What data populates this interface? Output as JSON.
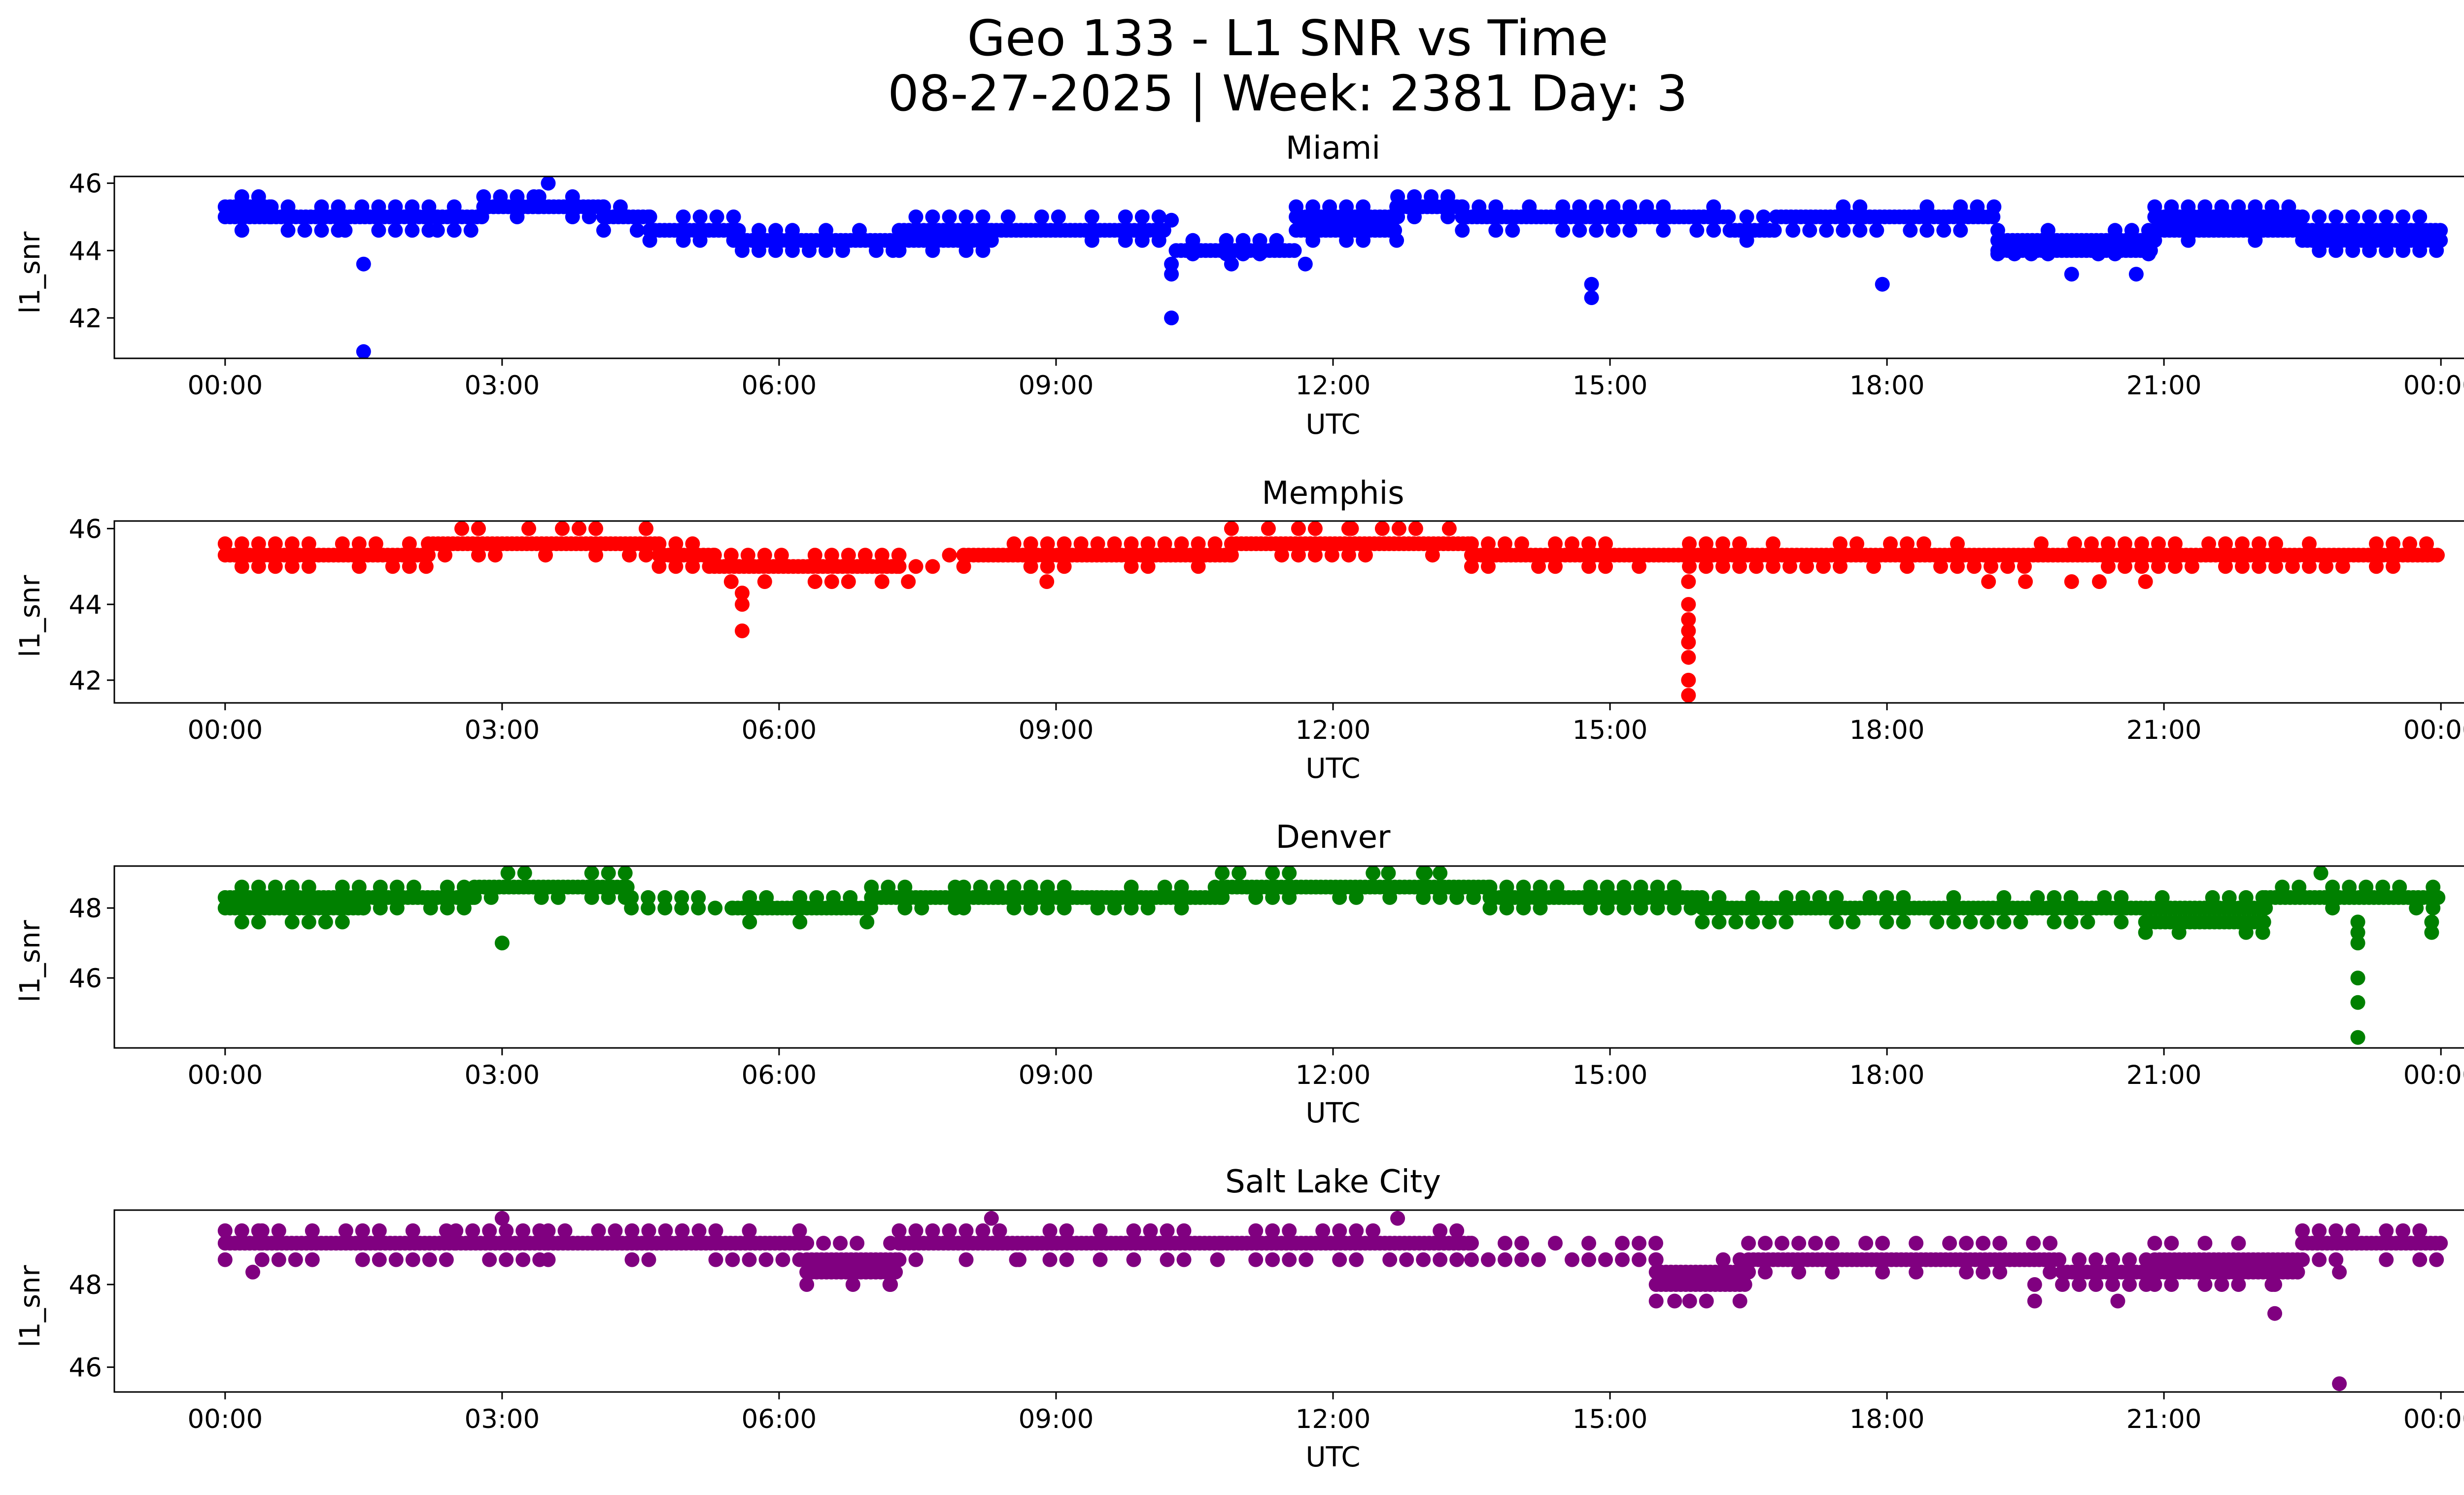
{
  "figure": {
    "title_line1": "Geo 133 - L1 SNR vs Time",
    "title_line2": "08-27-2025 | Week: 2381 Day: 3"
  },
  "chart_data": [
    {
      "type": "scatter",
      "title": "Miami",
      "xlabel": "UTC",
      "ylabel": "l1_snr",
      "color": "#0000ff",
      "xlim_hours": [
        -1.2,
        25.2
      ],
      "ylim": [
        40.8,
        46.2
      ],
      "xticks": [
        {
          "h": 0,
          "label": "00:00"
        },
        {
          "h": 3,
          "label": "03:00"
        },
        {
          "h": 6,
          "label": "06:00"
        },
        {
          "h": 9,
          "label": "09:00"
        },
        {
          "h": 12,
          "label": "12:00"
        },
        {
          "h": 15,
          "label": "15:00"
        },
        {
          "h": 18,
          "label": "18:00"
        },
        {
          "h": 21,
          "label": "21:00"
        },
        {
          "h": 24,
          "label": "00:00"
        }
      ],
      "yticks": [
        {
          "v": 42,
          "label": "42"
        },
        {
          "v": 44,
          "label": "44"
        },
        {
          "v": 46,
          "label": "46"
        }
      ],
      "segments": [
        {
          "x0": 0.0,
          "x1": 0.5,
          "values": [
            44.6,
            45.0,
            45.3,
            45.6
          ]
        },
        {
          "x0": 0.5,
          "x1": 1.3,
          "values": [
            44.6,
            45.0,
            45.3
          ]
        },
        {
          "x0": 1.3,
          "x1": 2.3,
          "values": [
            44.6,
            45.0,
            45.3
          ]
        },
        {
          "x0": 2.3,
          "x1": 2.8,
          "values": [
            44.6,
            45.0,
            45.3
          ]
        },
        {
          "x0": 2.8,
          "x1": 3.4,
          "values": [
            45.0,
            45.3,
            45.6
          ]
        },
        {
          "x0": 3.4,
          "x1": 4.1,
          "values": [
            45.0,
            45.3,
            45.6
          ]
        },
        {
          "x0": 4.1,
          "x1": 4.6,
          "values": [
            44.6,
            45.0,
            45.3
          ]
        },
        {
          "x0": 4.6,
          "x1": 5.6,
          "values": [
            44.3,
            44.6,
            45.0
          ]
        },
        {
          "x0": 5.6,
          "x1": 7.3,
          "values": [
            44.0,
            44.3,
            44.6
          ]
        },
        {
          "x0": 7.3,
          "x1": 8.3,
          "values": [
            44.0,
            44.3,
            44.6,
            45.0
          ]
        },
        {
          "x0": 8.3,
          "x1": 10.2,
          "values": [
            44.3,
            44.6,
            45.0
          ]
        },
        {
          "x0": 10.3,
          "x1": 11.6,
          "values": [
            43.9,
            44.0,
            44.3
          ]
        },
        {
          "x0": 11.6,
          "x1": 12.7,
          "values": [
            44.3,
            44.6,
            45.0,
            45.3
          ]
        },
        {
          "x0": 12.7,
          "x1": 13.4,
          "values": [
            45.0,
            45.3,
            45.6
          ]
        },
        {
          "x0": 13.4,
          "x1": 16.3,
          "values": [
            44.6,
            45.0,
            45.3
          ]
        },
        {
          "x0": 16.3,
          "x1": 16.8,
          "values": [
            44.3,
            44.6,
            45.0
          ]
        },
        {
          "x0": 16.8,
          "x1": 19.2,
          "values": [
            44.6,
            45.0,
            45.3
          ]
        },
        {
          "x0": 19.2,
          "x1": 20.9,
          "values": [
            43.9,
            44.0,
            44.3,
            44.6
          ]
        },
        {
          "x0": 20.9,
          "x1": 22.5,
          "values": [
            44.3,
            44.6,
            45.0,
            45.3
          ]
        },
        {
          "x0": 22.5,
          "x1": 24.0,
          "values": [
            44.0,
            44.3,
            44.6,
            45.0
          ]
        }
      ],
      "outliers": [
        [
          1.5,
          43.6
        ],
        [
          1.5,
          41.0
        ],
        [
          10.25,
          44.9
        ],
        [
          10.25,
          43.6
        ],
        [
          10.25,
          43.3
        ],
        [
          10.25,
          42.0
        ],
        [
          10.9,
          43.6
        ],
        [
          14.8,
          43.0
        ],
        [
          14.8,
          42.6
        ],
        [
          17.95,
          43.0
        ],
        [
          20.0,
          43.3
        ],
        [
          20.7,
          43.3
        ],
        [
          11.7,
          43.6
        ],
        [
          3.5,
          46.0
        ]
      ]
    },
    {
      "type": "scatter",
      "title": "Memphis",
      "xlabel": "UTC",
      "ylabel": "l1_snr",
      "color": "#ff0000",
      "xlim_hours": [
        -1.2,
        25.2
      ],
      "ylim": [
        41.4,
        46.2
      ],
      "xticks": [
        {
          "h": 0,
          "label": "00:00"
        },
        {
          "h": 3,
          "label": "03:00"
        },
        {
          "h": 6,
          "label": "06:00"
        },
        {
          "h": 9,
          "label": "09:00"
        },
        {
          "h": 12,
          "label": "12:00"
        },
        {
          "h": 15,
          "label": "15:00"
        },
        {
          "h": 18,
          "label": "18:00"
        },
        {
          "h": 21,
          "label": "21:00"
        },
        {
          "h": 24,
          "label": "00:00"
        }
      ],
      "yticks": [
        {
          "v": 42,
          "label": "42"
        },
        {
          "v": 44,
          "label": "44"
        },
        {
          "v": 46,
          "label": "46"
        }
      ],
      "segments": [
        {
          "x0": 0.0,
          "x1": 2.2,
          "values": [
            45.0,
            45.3,
            45.6
          ]
        },
        {
          "x0": 2.2,
          "x1": 4.7,
          "values": [
            45.3,
            45.6,
            46.0
          ]
        },
        {
          "x0": 4.7,
          "x1": 5.3,
          "values": [
            45.0,
            45.3,
            45.6
          ]
        },
        {
          "x0": 5.3,
          "x1": 7.3,
          "values": [
            44.6,
            45.0,
            45.3
          ]
        },
        {
          "x0": 7.3,
          "x1": 8.0,
          "values": [
            45.0,
            45.3
          ]
        },
        {
          "x0": 8.0,
          "x1": 10.9,
          "values": [
            45.0,
            45.3,
            45.6
          ]
        },
        {
          "x0": 10.9,
          "x1": 13.5,
          "values": [
            45.3,
            45.6,
            46.0
          ]
        },
        {
          "x0": 13.5,
          "x1": 24.0,
          "values": [
            45.0,
            45.3,
            45.6
          ]
        }
      ],
      "outliers": [
        [
          5.6,
          44.3
        ],
        [
          5.6,
          44.0
        ],
        [
          5.6,
          43.3
        ],
        [
          15.85,
          44.6
        ],
        [
          15.85,
          44.0
        ],
        [
          15.85,
          43.6
        ],
        [
          15.85,
          43.3
        ],
        [
          15.85,
          43.0
        ],
        [
          15.85,
          42.6
        ],
        [
          15.85,
          42.0
        ],
        [
          15.85,
          41.6
        ],
        [
          19.1,
          44.6
        ],
        [
          19.5,
          44.6
        ],
        [
          20.0,
          44.6
        ],
        [
          20.3,
          44.6
        ],
        [
          20.8,
          44.6
        ],
        [
          8.9,
          44.6
        ],
        [
          7.4,
          44.6
        ],
        [
          11.3,
          46.0
        ],
        [
          12.2,
          46.0
        ]
      ]
    },
    {
      "type": "scatter",
      "title": "Denver",
      "xlabel": "UTC",
      "ylabel": "l1_snr",
      "color": "#008000",
      "xlim_hours": [
        -1.2,
        25.2
      ],
      "ylim": [
        44.0,
        49.2
      ],
      "xticks": [
        {
          "h": 0,
          "label": "00:00"
        },
        {
          "h": 3,
          "label": "03:00"
        },
        {
          "h": 6,
          "label": "06:00"
        },
        {
          "h": 9,
          "label": "09:00"
        },
        {
          "h": 12,
          "label": "12:00"
        },
        {
          "h": 15,
          "label": "15:00"
        },
        {
          "h": 18,
          "label": "18:00"
        },
        {
          "h": 21,
          "label": "21:00"
        },
        {
          "h": 24,
          "label": "00:00"
        }
      ],
      "yticks": [
        {
          "v": 46,
          "label": "46"
        },
        {
          "v": 48,
          "label": "48"
        }
      ],
      "segments": [
        {
          "x0": 0.0,
          "x1": 1.5,
          "values": [
            47.6,
            48.0,
            48.3,
            48.6
          ]
        },
        {
          "x0": 1.5,
          "x1": 2.7,
          "values": [
            48.0,
            48.3,
            48.6
          ]
        },
        {
          "x0": 2.7,
          "x1": 4.4,
          "values": [
            48.3,
            48.6,
            49.0
          ]
        },
        {
          "x0": 4.4,
          "x1": 5.5,
          "values": [
            48.0,
            48.3
          ]
        },
        {
          "x0": 5.5,
          "x1": 7.0,
          "values": [
            47.6,
            48.0,
            48.3
          ]
        },
        {
          "x0": 7.0,
          "x1": 8.0,
          "values": [
            48.0,
            48.3,
            48.6
          ]
        },
        {
          "x0": 8.0,
          "x1": 10.8,
          "values": [
            48.0,
            48.3,
            48.6
          ]
        },
        {
          "x0": 10.8,
          "x1": 13.7,
          "values": [
            48.3,
            48.6,
            49.0
          ]
        },
        {
          "x0": 13.7,
          "x1": 16.0,
          "values": [
            48.0,
            48.3,
            48.6
          ]
        },
        {
          "x0": 16.0,
          "x1": 20.8,
          "values": [
            47.6,
            48.0,
            48.3
          ]
        },
        {
          "x0": 20.8,
          "x1": 22.1,
          "values": [
            47.3,
            47.6,
            48.0,
            48.3
          ]
        },
        {
          "x0": 22.1,
          "x1": 24.0,
          "values": [
            48.0,
            48.3,
            48.6
          ]
        }
      ],
      "outliers": [
        [
          3.0,
          47.0
        ],
        [
          23.1,
          47.6
        ],
        [
          23.1,
          47.3
        ],
        [
          23.1,
          47.0
        ],
        [
          23.1,
          46.0
        ],
        [
          23.1,
          45.3
        ],
        [
          23.1,
          44.3
        ],
        [
          23.9,
          47.6
        ],
        [
          23.9,
          47.3
        ],
        [
          22.7,
          49.0
        ],
        [
          12.6,
          49.0
        ],
        [
          13.0,
          49.0
        ]
      ]
    },
    {
      "type": "scatter",
      "title": "Salt Lake City",
      "xlabel": "UTC",
      "ylabel": "l1_snr",
      "color": "#800080",
      "xlim_hours": [
        -1.2,
        25.2
      ],
      "ylim": [
        45.4,
        49.8
      ],
      "xticks": [
        {
          "h": 0,
          "label": "00:00"
        },
        {
          "h": 3,
          "label": "03:00"
        },
        {
          "h": 6,
          "label": "06:00"
        },
        {
          "h": 9,
          "label": "09:00"
        },
        {
          "h": 12,
          "label": "12:00"
        },
        {
          "h": 15,
          "label": "15:00"
        },
        {
          "h": 18,
          "label": "18:00"
        },
        {
          "h": 21,
          "label": "21:00"
        },
        {
          "h": 24,
          "label": "00:00"
        }
      ],
      "yticks": [
        {
          "v": 46,
          "label": "46"
        },
        {
          "v": 48,
          "label": "48"
        }
      ],
      "segments": [
        {
          "x0": 0.0,
          "x1": 0.4,
          "values": [
            48.6,
            49.0,
            49.3
          ]
        },
        {
          "x0": 0.4,
          "x1": 2.5,
          "values": [
            48.6,
            49.0,
            49.3
          ]
        },
        {
          "x0": 2.5,
          "x1": 3.5,
          "values": [
            48.6,
            49.0,
            49.3
          ]
        },
        {
          "x0": 3.5,
          "x1": 6.3,
          "values": [
            48.6,
            49.0,
            49.3
          ]
        },
        {
          "x0": 6.3,
          "x1": 7.3,
          "values": [
            48.0,
            48.3,
            48.6,
            49.0
          ]
        },
        {
          "x0": 7.3,
          "x1": 10.8,
          "values": [
            48.6,
            49.0,
            49.3
          ]
        },
        {
          "x0": 10.8,
          "x1": 13.5,
          "values": [
            48.6,
            49.0,
            49.3
          ]
        },
        {
          "x0": 13.5,
          "x1": 15.5,
          "values": [
            48.6,
            49.0
          ]
        },
        {
          "x0": 15.5,
          "x1": 16.5,
          "values": [
            47.6,
            48.0,
            48.3,
            48.6
          ]
        },
        {
          "x0": 16.5,
          "x1": 19.9,
          "values": [
            48.3,
            48.6,
            49.0
          ]
        },
        {
          "x0": 19.9,
          "x1": 20.9,
          "values": [
            48.0,
            48.3,
            48.6
          ]
        },
        {
          "x0": 20.9,
          "x1": 22.5,
          "values": [
            48.0,
            48.3,
            48.6,
            49.0
          ]
        },
        {
          "x0": 22.5,
          "x1": 24.0,
          "values": [
            48.6,
            49.0,
            49.3
          ]
        }
      ],
      "outliers": [
        [
          3.0,
          49.6
        ],
        [
          8.3,
          49.6
        ],
        [
          12.7,
          49.6
        ],
        [
          0.3,
          48.3
        ],
        [
          6.8,
          48.0
        ],
        [
          7.2,
          48.0
        ],
        [
          19.6,
          48.0
        ],
        [
          19.6,
          47.6
        ],
        [
          20.5,
          47.6
        ],
        [
          22.2,
          48.0
        ],
        [
          22.2,
          47.3
        ],
        [
          22.9,
          48.3
        ],
        [
          22.9,
          45.6
        ],
        [
          8.6,
          48.6
        ],
        [
          15.7,
          47.6
        ]
      ]
    }
  ]
}
